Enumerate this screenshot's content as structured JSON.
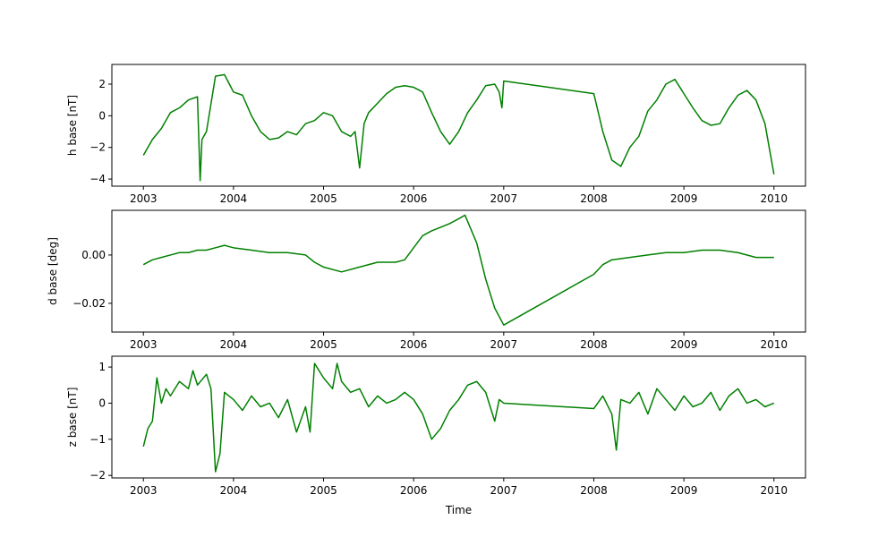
{
  "chart_data": [
    {
      "type": "line",
      "y_label": "h base [nT]",
      "color": "#008000",
      "x": [
        2003.0,
        2003.1,
        2003.2,
        2003.3,
        2003.4,
        2003.5,
        2003.6,
        2003.63,
        2003.65,
        2003.7,
        2003.8,
        2003.9,
        2004.0,
        2004.1,
        2004.2,
        2004.3,
        2004.4,
        2004.5,
        2004.6,
        2004.7,
        2004.8,
        2004.9,
        2005.0,
        2005.1,
        2005.2,
        2005.3,
        2005.35,
        2005.4,
        2005.45,
        2005.5,
        2005.6,
        2005.7,
        2005.8,
        2005.9,
        2006.0,
        2006.1,
        2006.2,
        2006.3,
        2006.4,
        2006.5,
        2006.6,
        2006.7,
        2006.8,
        2006.9,
        2006.95,
        2006.98,
        2007.0,
        2008.0,
        2008.1,
        2008.2,
        2008.3,
        2008.4,
        2008.5,
        2008.6,
        2008.7,
        2008.8,
        2008.9,
        2009.0,
        2009.1,
        2009.2,
        2009.3,
        2009.4,
        2009.5,
        2009.6,
        2009.7,
        2009.8,
        2009.9,
        2010.0
      ],
      "values": [
        -2.5,
        -1.5,
        -0.8,
        0.2,
        0.5,
        1.0,
        1.2,
        -4.1,
        -1.5,
        -1.0,
        2.5,
        2.6,
        1.5,
        1.3,
        0.0,
        -1.0,
        -1.5,
        -1.4,
        -1.0,
        -1.2,
        -0.5,
        -0.3,
        0.2,
        0.0,
        -1.0,
        -1.3,
        -1.0,
        -3.3,
        -0.5,
        0.2,
        0.8,
        1.4,
        1.8,
        1.9,
        1.8,
        1.5,
        0.2,
        -1.0,
        -1.8,
        -1.0,
        0.2,
        1.0,
        1.9,
        2.0,
        1.5,
        0.5,
        2.2,
        1.4,
        -1.0,
        -2.8,
        -3.2,
        -2.0,
        -1.3,
        0.3,
        1.0,
        2.0,
        2.3,
        1.4,
        0.5,
        -0.3,
        -0.6,
        -0.5,
        0.5,
        1.3,
        1.6,
        1.0,
        -0.5,
        -3.7
      ],
      "xlim": [
        2002.65,
        2010.35
      ],
      "xticks": [
        2003,
        2004,
        2005,
        2006,
        2007,
        2008,
        2009,
        2010
      ],
      "ylim": [
        -4.45,
        3.245
      ],
      "yticks": [
        {
          "value": -4,
          "label": "−4"
        },
        {
          "value": -2,
          "label": "−2"
        },
        0,
        2
      ]
    },
    {
      "type": "line",
      "y_label": "d base [deg]",
      "color": "#008000",
      "x": [
        2003.0,
        2003.1,
        2003.2,
        2003.3,
        2003.4,
        2003.5,
        2003.6,
        2003.7,
        2003.8,
        2003.9,
        2004.0,
        2004.2,
        2004.4,
        2004.6,
        2004.8,
        2004.9,
        2005.0,
        2005.2,
        2005.4,
        2005.6,
        2005.8,
        2005.9,
        2006.0,
        2006.1,
        2006.2,
        2006.4,
        2006.5,
        2006.57,
        2006.7,
        2006.8,
        2006.9,
        2007.0,
        2008.0,
        2008.1,
        2008.2,
        2008.4,
        2008.6,
        2008.8,
        2009.0,
        2009.2,
        2009.4,
        2009.6,
        2009.8,
        2010.0
      ],
      "values": [
        -0.004,
        -0.002,
        -0.001,
        0.0,
        0.001,
        0.001,
        0.002,
        0.002,
        0.003,
        0.004,
        0.003,
        0.002,
        0.001,
        0.001,
        0.0,
        -0.003,
        -0.005,
        -0.007,
        -0.005,
        -0.003,
        -0.003,
        -0.002,
        0.003,
        0.008,
        0.01,
        0.013,
        0.015,
        0.0165,
        0.005,
        -0.01,
        -0.022,
        -0.029,
        -0.008,
        -0.004,
        -0.002,
        -0.001,
        0.0,
        0.001,
        0.001,
        0.002,
        0.002,
        0.001,
        -0.001,
        -0.001
      ],
      "xlim": [
        2002.65,
        2010.35
      ],
      "xticks": [
        2003,
        2004,
        2005,
        2006,
        2007,
        2008,
        2009,
        2010
      ],
      "ylim": [
        -0.0319,
        0.0185
      ],
      "yticks": [
        {
          "value": -0.02,
          "label": "−0.02"
        },
        {
          "value": 0,
          "label": "0.00"
        }
      ]
    },
    {
      "type": "line",
      "y_label": "z base [nT]",
      "x_label": "Time",
      "color": "#008000",
      "x": [
        2003.0,
        2003.05,
        2003.1,
        2003.15,
        2003.2,
        2003.25,
        2003.3,
        2003.4,
        2003.5,
        2003.55,
        2003.6,
        2003.7,
        2003.75,
        2003.8,
        2003.85,
        2003.9,
        2004.0,
        2004.1,
        2004.2,
        2004.3,
        2004.4,
        2004.5,
        2004.6,
        2004.7,
        2004.8,
        2004.85,
        2004.9,
        2005.0,
        2005.1,
        2005.15,
        2005.2,
        2005.3,
        2005.4,
        2005.5,
        2005.6,
        2005.7,
        2005.8,
        2005.9,
        2006.0,
        2006.1,
        2006.2,
        2006.3,
        2006.4,
        2006.5,
        2006.6,
        2006.7,
        2006.8,
        2006.9,
        2006.95,
        2007.0,
        2008.0,
        2008.1,
        2008.2,
        2008.25,
        2008.3,
        2008.4,
        2008.5,
        2008.6,
        2008.7,
        2008.8,
        2008.9,
        2009.0,
        2009.1,
        2009.2,
        2009.3,
        2009.4,
        2009.5,
        2009.6,
        2009.7,
        2009.8,
        2009.9,
        2010.0
      ],
      "values": [
        -1.2,
        -0.7,
        -0.5,
        0.7,
        0.0,
        0.4,
        0.2,
        0.6,
        0.4,
        0.9,
        0.5,
        0.8,
        0.4,
        -1.9,
        -1.4,
        0.3,
        0.1,
        -0.2,
        0.2,
        -0.1,
        0.0,
        -0.4,
        0.1,
        -0.8,
        -0.1,
        -0.8,
        1.1,
        0.7,
        0.4,
        1.1,
        0.6,
        0.3,
        0.4,
        -0.1,
        0.2,
        0.0,
        0.1,
        0.3,
        0.1,
        -0.3,
        -1.0,
        -0.7,
        -0.2,
        0.1,
        0.5,
        0.6,
        0.3,
        -0.5,
        0.1,
        0.0,
        -0.15,
        0.2,
        -0.3,
        -1.3,
        0.1,
        0.0,
        0.3,
        -0.3,
        0.4,
        0.1,
        -0.2,
        0.2,
        -0.1,
        0.0,
        0.3,
        -0.2,
        0.2,
        0.4,
        0.0,
        0.1,
        -0.1,
        0.0
      ],
      "xlim": [
        2002.65,
        2010.35
      ],
      "xticks": [
        2003,
        2004,
        2005,
        2006,
        2007,
        2008,
        2009,
        2010
      ],
      "ylim": [
        -2.07,
        1.3
      ],
      "yticks": [
        {
          "value": -2,
          "label": "−2"
        },
        {
          "value": -1,
          "label": "−1"
        },
        0,
        1
      ]
    }
  ]
}
